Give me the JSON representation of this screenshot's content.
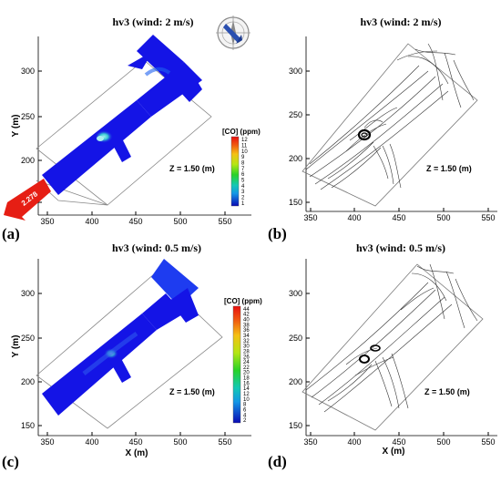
{
  "panels": [
    {
      "tag": "(a)",
      "title": "hv3 (wind: 2 m/s)",
      "ylabel": "Y (m)",
      "xlabel": "",
      "xticks": [
        "350",
        "400",
        "450",
        "500",
        "550"
      ],
      "yticks": [
        "150",
        "200",
        "250",
        "300"
      ],
      "zlabel": "Z = 1.50 (m)",
      "legend_title": "[CO] (ppm)",
      "legend_ticks": [
        "12",
        "11",
        "10",
        "9",
        "8",
        "7",
        "6",
        "5",
        "4",
        "3",
        "2",
        "1"
      ],
      "inlet_label": "2.278"
    },
    {
      "tag": "(b)",
      "title": "hv3 (wind: 2 m/s)",
      "ylabel": "",
      "xlabel": "",
      "xticks": [
        "350",
        "400",
        "450",
        "500",
        "550"
      ],
      "yticks": [
        "150",
        "200",
        "250",
        "300"
      ],
      "zlabel": "Z = 1.50 (m)"
    },
    {
      "tag": "(c)",
      "title": "hv3 (wind: 0.5 m/s)",
      "ylabel": "Y (m)",
      "xlabel": "X (m)",
      "xticks": [
        "350",
        "400",
        "450",
        "500",
        "550"
      ],
      "yticks": [
        "150",
        "200",
        "250",
        "300"
      ],
      "zlabel": "Z = 1.50 (m)",
      "legend_title": "[CO] (ppm)",
      "legend_ticks": [
        "44",
        "42",
        "40",
        "38",
        "36",
        "34",
        "32",
        "30",
        "28",
        "26",
        "24",
        "22",
        "20",
        "18",
        "16",
        "14",
        "12",
        "10",
        "8",
        "6",
        "4",
        "2"
      ]
    },
    {
      "tag": "(d)",
      "title": "hv3 (wind: 0.5 m/s)",
      "ylabel": "",
      "xlabel": "X (m)",
      "xticks": [
        "350",
        "400",
        "450",
        "500",
        "550"
      ],
      "yticks": [
        "150",
        "200",
        "250",
        "300"
      ],
      "zlabel": "Z = 1.50 (m)"
    }
  ],
  "colors": {
    "domain_blue": "#1414e6",
    "hotspot": "#37c8d2",
    "inlet_red": "#e61e14",
    "streamline": "#333333",
    "scale": [
      "#e81010",
      "#f05a10",
      "#f5a010",
      "#f5e614",
      "#9ee614",
      "#28d228",
      "#14c8a0",
      "#14b4e6",
      "#1478e6",
      "#1432e6",
      "#0a0ab4"
    ]
  },
  "icons": [
    "compass-icon"
  ]
}
